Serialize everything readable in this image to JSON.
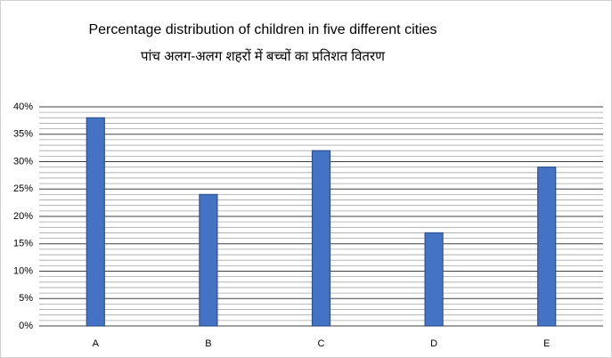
{
  "chart_data": {
    "type": "bar",
    "title": "Percentage distribution of children in five different cities",
    "subtitle": "पांच अलग-अलग शहरों में बच्चों का प्रतिशत वितरण",
    "categories": [
      "A",
      "B",
      "C",
      "D",
      "E"
    ],
    "values": [
      38,
      24,
      32,
      17,
      29
    ],
    "color": "#4472c4",
    "ylim": [
      0,
      40
    ],
    "yticks": [
      {
        "value": 0,
        "label": "0%"
      },
      {
        "value": 5,
        "label": "5%"
      },
      {
        "value": 10,
        "label": "10%"
      },
      {
        "value": 15,
        "label": "15%"
      },
      {
        "value": 20,
        "label": "20%"
      },
      {
        "value": 25,
        "label": "25%"
      },
      {
        "value": 30,
        "label": "30%"
      },
      {
        "value": 35,
        "label": "35%"
      },
      {
        "value": 40,
        "label": "40%"
      }
    ],
    "minor_yticks": [
      1,
      2,
      3,
      4,
      6,
      7,
      8,
      9,
      11,
      12,
      13,
      14,
      16,
      17,
      18,
      19,
      21,
      22,
      23,
      24,
      26,
      27,
      28,
      29,
      31,
      32,
      33,
      34,
      36,
      37,
      38,
      39
    ],
    "grid": true
  }
}
